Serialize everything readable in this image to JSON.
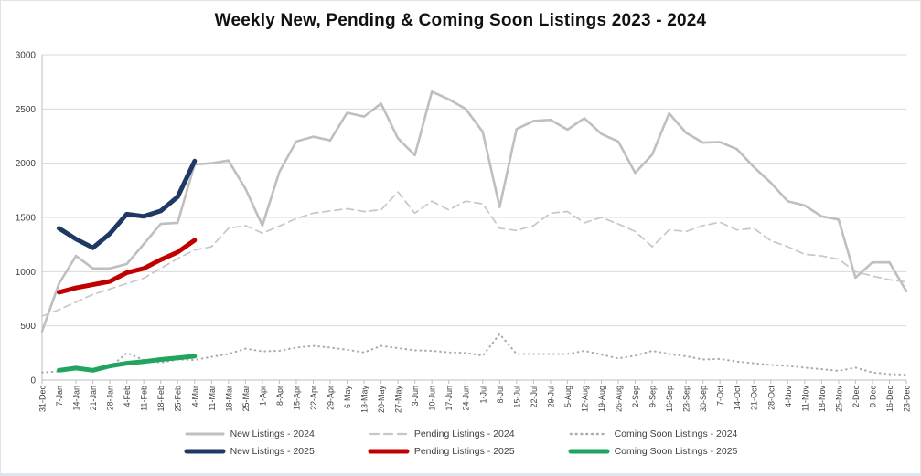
{
  "title": "Weekly New, Pending & Coming Soon Listings 2023 - 2024",
  "colors": {
    "grid": "#d9d9d9",
    "axis": "#bfbfbf",
    "tick_label": "#404040",
    "title_text": "#111111"
  },
  "chart_data": {
    "type": "line",
    "title": "Weekly New, Pending & Coming Soon Listings 2023 - 2024",
    "xlabel": "",
    "ylabel": "",
    "ylim": [
      0,
      3000
    ],
    "y_ticks": [
      0,
      500,
      1000,
      1500,
      2000,
      2500,
      3000
    ],
    "grid": "horizontal",
    "legend_position": "bottom",
    "categories": [
      "31-Dec",
      "7-Jan",
      "14-Jan",
      "21-Jan",
      "28-Jan",
      "4-Feb",
      "11-Feb",
      "18-Feb",
      "25-Feb",
      "4-Mar",
      "11-Mar",
      "18-Mar",
      "25-Mar",
      "1-Apr",
      "8-Apr",
      "15-Apr",
      "22-Apr",
      "29-Apr",
      "6-May",
      "13-May",
      "20-May",
      "27-May",
      "3-Jun",
      "10-Jun",
      "17-Jun",
      "24-Jun",
      "1-Jul",
      "8-Jul",
      "15-Jul",
      "22-Jul",
      "29-Jul",
      "5-Aug",
      "12-Aug",
      "19-Aug",
      "26-Aug",
      "2-Sep",
      "9-Sep",
      "16-Sep",
      "23-Sep",
      "30-Sep",
      "7-Oct",
      "14-Oct",
      "21-Oct",
      "28-Oct",
      "4-Nov",
      "11-Nov",
      "18-Nov",
      "25-Nov",
      "2-Dec",
      "9-Dec",
      "16-Dec",
      "23-Dec"
    ],
    "series": [
      {
        "name": "New Listings - 2024",
        "color": "#bfbfbf",
        "dash": "solid",
        "width": 2.6,
        "start_index": 0,
        "values": [
          450,
          890,
          1145,
          1030,
          1030,
          1070,
          1255,
          1440,
          1450,
          1990,
          2000,
          2025,
          1765,
          1425,
          1920,
          2200,
          2245,
          2210,
          2465,
          2430,
          2550,
          2230,
          2075,
          2660,
          2590,
          2500,
          2290,
          1595,
          2315,
          2390,
          2400,
          2310,
          2415,
          2270,
          2200,
          1910,
          2080,
          2460,
          2280,
          2190,
          2195,
          2130,
          1965,
          1820,
          1650,
          1610,
          1510,
          1480,
          945,
          1085,
          1085,
          820
        ]
      },
      {
        "name": "Pending Listings - 2024",
        "color": "#c7c7c7",
        "dash": "dashed",
        "width": 1.7,
        "start_index": 0,
        "values": [
          590,
          650,
          720,
          790,
          840,
          890,
          940,
          1030,
          1120,
          1200,
          1230,
          1400,
          1425,
          1355,
          1420,
          1490,
          1540,
          1560,
          1580,
          1555,
          1570,
          1735,
          1540,
          1650,
          1570,
          1650,
          1625,
          1400,
          1380,
          1425,
          1540,
          1555,
          1450,
          1500,
          1440,
          1370,
          1230,
          1385,
          1370,
          1425,
          1455,
          1385,
          1400,
          1285,
          1230,
          1160,
          1145,
          1115,
          1000,
          960,
          925,
          905
        ]
      },
      {
        "name": "Coming Soon Listings - 2024",
        "color": "#ababab",
        "dash": "dotted",
        "width": 2.1,
        "start_index": 0,
        "values": [
          70,
          80,
          100,
          85,
          115,
          250,
          185,
          160,
          190,
          185,
          215,
          240,
          290,
          265,
          270,
          300,
          315,
          300,
          280,
          255,
          315,
          295,
          275,
          270,
          255,
          250,
          225,
          425,
          240,
          240,
          240,
          240,
          270,
          235,
          200,
          225,
          270,
          240,
          220,
          190,
          195,
          170,
          155,
          140,
          130,
          115,
          100,
          85,
          115,
          70,
          55,
          50
        ]
      },
      {
        "name": "New Listings - 2025",
        "color": "#1f3864",
        "dash": "solid",
        "width": 5,
        "start_index": 1,
        "values": [
          1400,
          1300,
          1220,
          1350,
          1530,
          1510,
          1560,
          1690,
          2020
        ]
      },
      {
        "name": "Pending Listings - 2025",
        "color": "#c00000",
        "dash": "solid",
        "width": 5,
        "start_index": 1,
        "values": [
          810,
          850,
          880,
          910,
          990,
          1030,
          1110,
          1180,
          1290
        ]
      },
      {
        "name": "Coming Soon Listings - 2025",
        "color": "#21a55e",
        "dash": "solid",
        "width": 5,
        "start_index": 1,
        "values": [
          90,
          110,
          90,
          130,
          155,
          170,
          190,
          205,
          220
        ]
      }
    ]
  }
}
